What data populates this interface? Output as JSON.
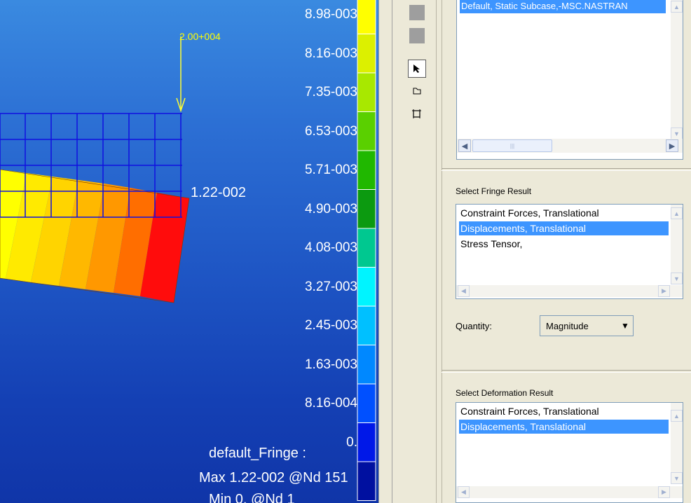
{
  "viewport": {
    "legend_values": [
      "8.98-003",
      "8.16-003",
      "7.35-003",
      "6.53-003",
      "5.71-003",
      "4.90-003",
      "4.08-003",
      "3.27-003",
      "2.45-003",
      "1.63-003",
      "8.16-004",
      "0."
    ],
    "legend_colors": [
      "#ffff00",
      "#dcf000",
      "#a8e800",
      "#5ad000",
      "#20b800",
      "#0c9a10",
      "#00c890",
      "#00f4ff",
      "#00c0ff",
      "#0088ff",
      "#0050ff",
      "#0018e8",
      "#0010a0"
    ],
    "load_label": "2.00+004",
    "max_node_value": "1.22-002",
    "fringe_title": "default_Fringe :",
    "max_text": "Max 1.22-002 @Nd 151",
    "min_text": "Min  0. @Nd 1"
  },
  "toolbar": {
    "icons": [
      "select-arrow-icon",
      "rectangle-select-icon",
      "polygon-select-icon"
    ]
  },
  "panel": {
    "subcase_item": "Default, Static Subcase,-MSC.NASTRAN",
    "fringe": {
      "title": "Select Fringe Result",
      "items": [
        "Constraint Forces, Translational",
        "Displacements, Translational",
        "Stress Tensor,"
      ],
      "selected_index": 1
    },
    "quantity": {
      "label": "Quantity:",
      "value": "Magnitude"
    },
    "deformation": {
      "title": "Select Deformation Result",
      "items": [
        "Constraint Forces, Translational",
        "Displacements, Translational"
      ],
      "selected_index": 1
    }
  }
}
